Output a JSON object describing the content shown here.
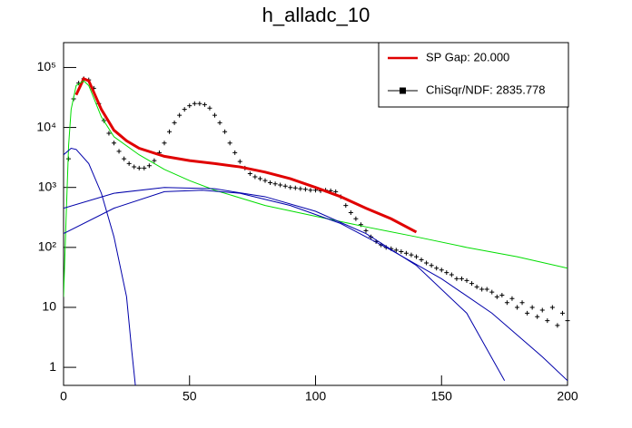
{
  "chart_data": {
    "type": "line",
    "title": "h_alladc_10",
    "log_y": true,
    "xlim": [
      0,
      200
    ],
    "xticks": [
      0,
      50,
      100,
      150,
      200
    ],
    "ylim": [
      0.5,
      260000
    ],
    "yticks": [
      1,
      10,
      {
        "value": 100,
        "label": "10²"
      },
      {
        "value": 1000,
        "label": "10³"
      },
      {
        "value": 10000,
        "label": "10⁴"
      },
      {
        "value": 100000,
        "label": "10⁵"
      }
    ],
    "legend": "top-right",
    "series": [
      {
        "name": "ChiSqr/NDF: 2835.778",
        "color": "#000000",
        "style": "points",
        "x": [
          2,
          4,
          6,
          8,
          10,
          12,
          14,
          16,
          18,
          20,
          22,
          24,
          26,
          28,
          30,
          32,
          34,
          36,
          38,
          40,
          42,
          44,
          46,
          48,
          50,
          52,
          54,
          56,
          58,
          60,
          62,
          64,
          66,
          68,
          70,
          72,
          74,
          76,
          78,
          80,
          82,
          84,
          86,
          88,
          90,
          92,
          94,
          96,
          98,
          100,
          102,
          104,
          106,
          108,
          110,
          112,
          114,
          116,
          118,
          120,
          122,
          124,
          126,
          128,
          130,
          132,
          134,
          136,
          138,
          140,
          142,
          144,
          146,
          148,
          150,
          152,
          154,
          156,
          158,
          160,
          162,
          164,
          166,
          168,
          170,
          172,
          174,
          176,
          178,
          180,
          182,
          184,
          186,
          188,
          190,
          192,
          194,
          196,
          198,
          200
        ],
        "values": [
          3000,
          30000,
          55000,
          65000,
          62000,
          45000,
          25000,
          13000,
          8000,
          5500,
          4000,
          3000,
          2500,
          2200,
          2100,
          2100,
          2300,
          2800,
          3800,
          5500,
          8500,
          12000,
          16000,
          20000,
          23000,
          25000,
          25000,
          24000,
          21000,
          16000,
          12000,
          8500,
          5500,
          3800,
          2700,
          2100,
          1700,
          1500,
          1400,
          1300,
          1200,
          1150,
          1100,
          1050,
          1000,
          980,
          950,
          930,
          900,
          900,
          880,
          900,
          880,
          850,
          700,
          500,
          380,
          300,
          240,
          190,
          150,
          125,
          110,
          100,
          95,
          90,
          85,
          80,
          75,
          70,
          62,
          55,
          50,
          45,
          42,
          38,
          35,
          30,
          30,
          28,
          25,
          22,
          20,
          20,
          18,
          15,
          16,
          12,
          14,
          10,
          12,
          8,
          10,
          7,
          9,
          6,
          10,
          5,
          8,
          6
        ]
      },
      {
        "name": "SP Gap: 20.000",
        "color": "#e00000",
        "style": "thick",
        "x": [
          5,
          8,
          10,
          15,
          20,
          25,
          30,
          40,
          50,
          60,
          70,
          80,
          90,
          100,
          110,
          120,
          130,
          140
        ],
        "values": [
          35000,
          65000,
          60000,
          20000,
          9000,
          6000,
          4500,
          3300,
          2800,
          2500,
          2200,
          1800,
          1400,
          1000,
          700,
          450,
          300,
          180
        ]
      },
      {
        "color": "#00dd00",
        "style": "thin",
        "x": [
          0,
          1,
          2,
          3,
          5,
          8,
          10,
          15,
          20,
          30,
          40,
          50,
          60,
          80,
          100,
          120,
          140,
          160,
          180,
          200
        ],
        "values": [
          15,
          300,
          5000,
          20000,
          50000,
          60000,
          50000,
          15000,
          7000,
          3500,
          2000,
          1300,
          900,
          500,
          330,
          220,
          150,
          100,
          70,
          45
        ]
      },
      {
        "color": "#0000aa",
        "style": "thin",
        "x": [
          0,
          3,
          5,
          10,
          15,
          20,
          25,
          27,
          28.5
        ],
        "values": [
          3500,
          4500,
          4300,
          2500,
          800,
          150,
          15,
          2,
          0.5
        ]
      },
      {
        "color": "#0000aa",
        "style": "thin",
        "x": [
          0,
          20,
          40,
          60,
          80,
          100,
          120,
          140,
          160,
          175
        ],
        "values": [
          450,
          800,
          1000,
          950,
          700,
          400,
          170,
          50,
          8,
          0.6
        ]
      },
      {
        "color": "#0000aa",
        "style": "thin",
        "x": [
          0,
          20,
          40,
          55,
          70,
          90,
          110,
          130,
          150,
          170,
          190,
          200
        ],
        "values": [
          170,
          450,
          850,
          900,
          800,
          500,
          250,
          90,
          30,
          8,
          1.5,
          0.6
        ]
      }
    ]
  }
}
